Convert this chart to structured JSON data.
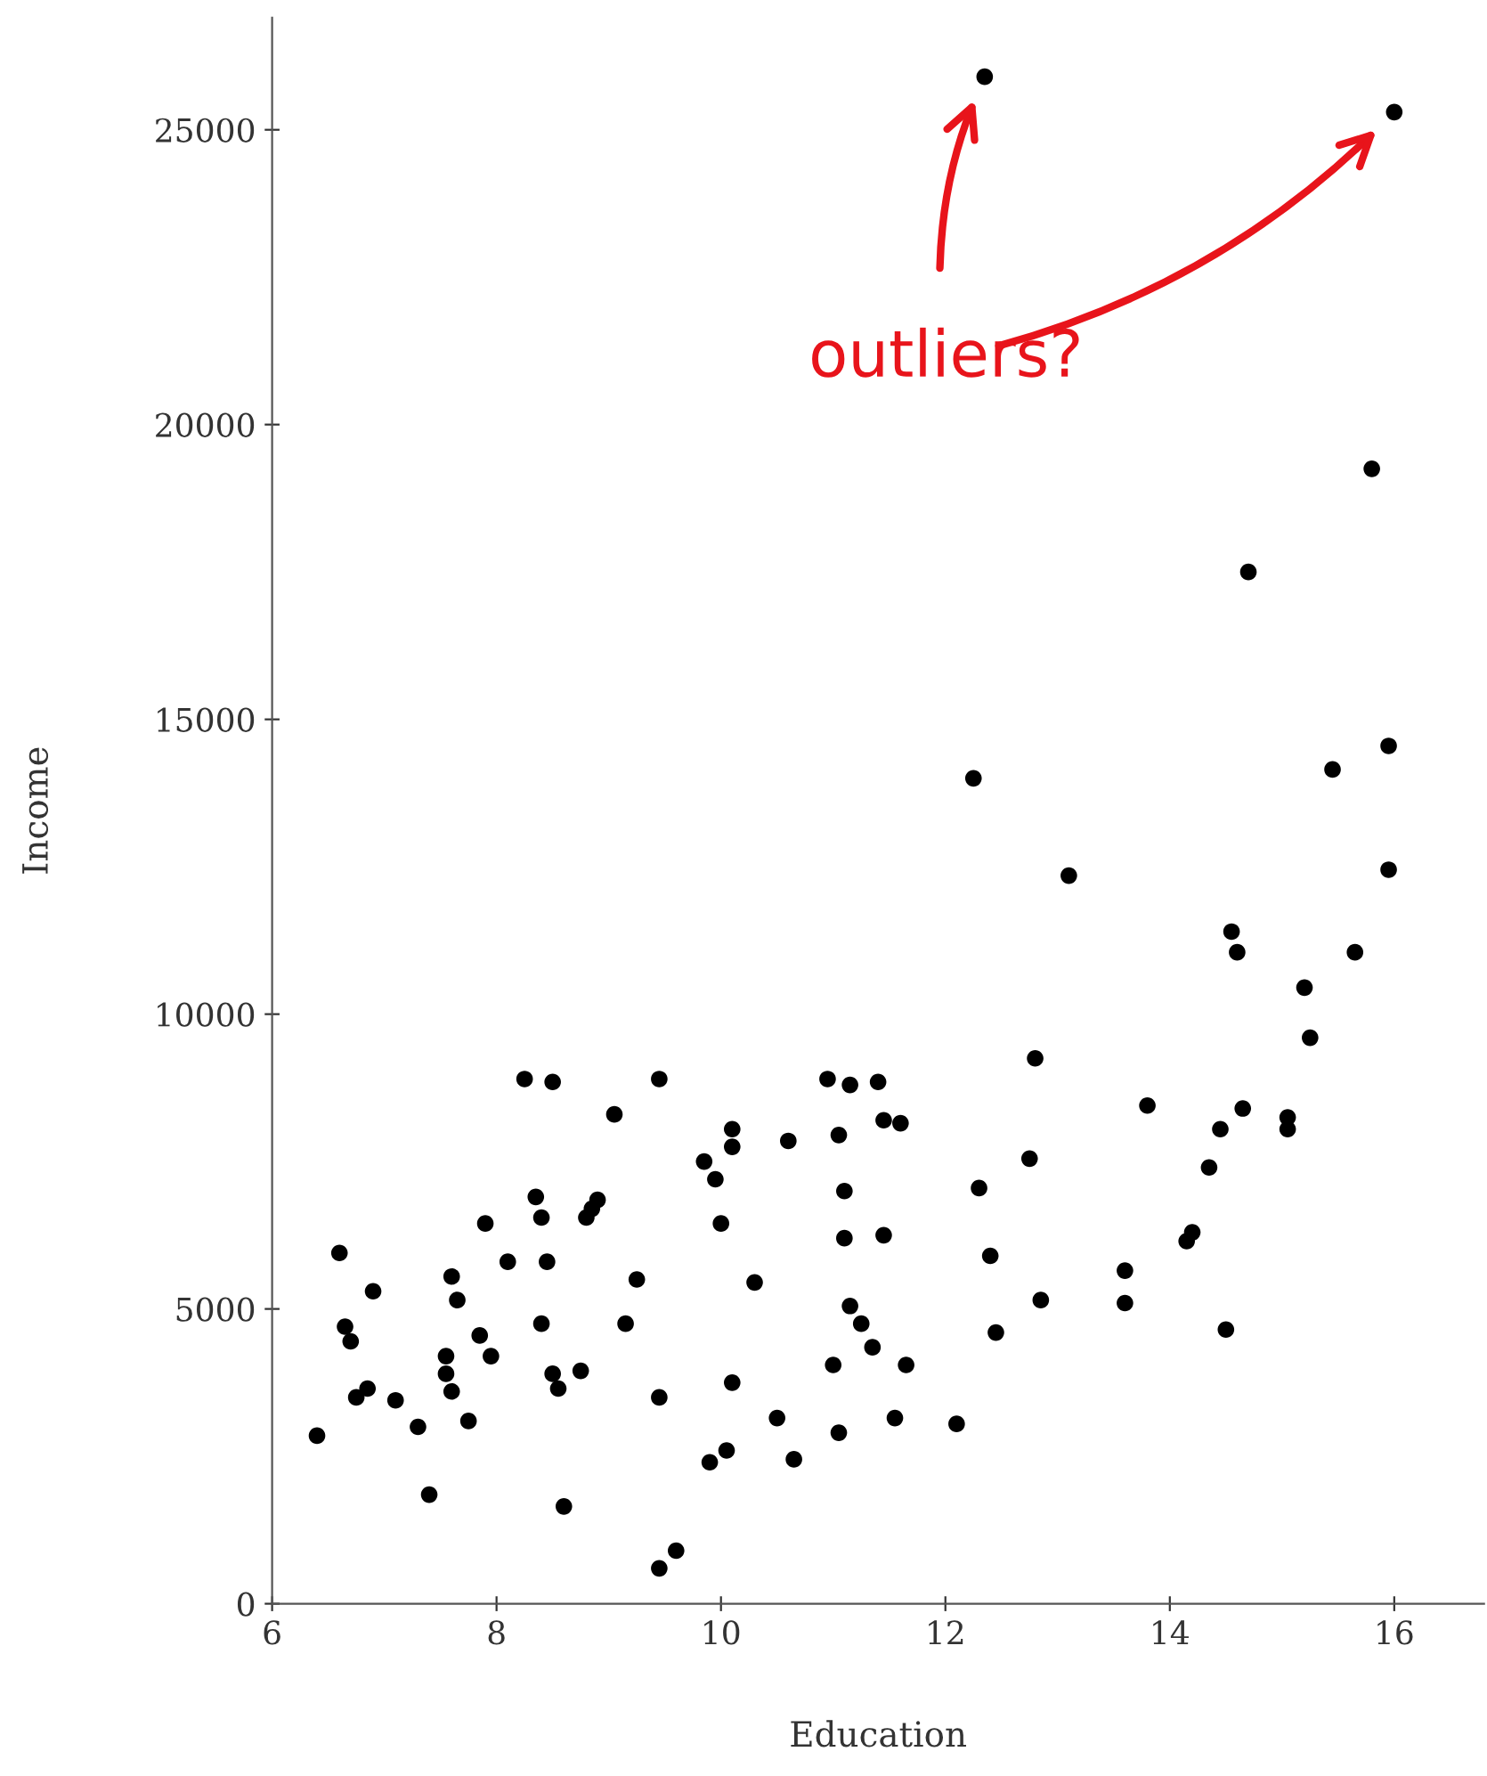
{
  "chart_data": {
    "type": "scatter",
    "xlabel": "Education",
    "ylabel": "Income",
    "xlim": [
      6,
      16.8
    ],
    "ylim": [
      0,
      26900
    ],
    "xticks": [
      6,
      8,
      10,
      12,
      14,
      16
    ],
    "yticks": [
      0,
      5000,
      10000,
      15000,
      20000,
      25000
    ],
    "grid": false,
    "marker": "circle",
    "annotations": [
      "outliers?"
    ],
    "series": [
      {
        "color": "#000000",
        "x": [
          6.4,
          6.6,
          6.65,
          6.7,
          6.75,
          6.85,
          6.9,
          7.1,
          7.3,
          7.4,
          7.55,
          7.55,
          7.6,
          7.6,
          7.65,
          7.75,
          7.85,
          7.9,
          7.95,
          8.1,
          8.25,
          8.35,
          8.4,
          8.4,
          8.45,
          8.5,
          8.5,
          8.55,
          8.6,
          8.75,
          8.8,
          8.85,
          8.9,
          9.05,
          9.15,
          9.25,
          9.45,
          9.45,
          9.45,
          9.6,
          9.85,
          9.9,
          9.95,
          10,
          10.05,
          10.1,
          10.1,
          10.1,
          10.3,
          10.5,
          10.6,
          10.65,
          10.95,
          11.0,
          11.05,
          11.05,
          11.1,
          11.1,
          11.15,
          11.15,
          11.25,
          11.35,
          11.4,
          11.45,
          11.45,
          11.55,
          11.6,
          11.65,
          12.1,
          12.25,
          12.3,
          12.35,
          12.4,
          12.45,
          12.75,
          12.8,
          12.85,
          13.1,
          13.6,
          13.6,
          13.8,
          14.15,
          14.2,
          14.35,
          14.45,
          14.55,
          14.5,
          14.6,
          14.65,
          14.7,
          15.05,
          15.05,
          15.2,
          15.25,
          15.45,
          15.65,
          15.8,
          15.95,
          15.95,
          16.0
        ],
        "values": [
          2850,
          5950,
          4700,
          4450,
          3500,
          3650,
          5300,
          3450,
          3000,
          1850,
          3900,
          4200,
          5550,
          3600,
          5150,
          3100,
          4550,
          6450,
          4200,
          5800,
          8900,
          6900,
          4750,
          6550,
          5800,
          8850,
          3900,
          3650,
          1650,
          3950,
          6550,
          6700,
          6850,
          8300,
          4750,
          5500,
          8900,
          3500,
          600,
          900,
          7500,
          2400,
          7200,
          6450,
          2600,
          7750,
          8050,
          3750,
          5450,
          3150,
          7850,
          2450,
          8900,
          4050,
          7950,
          2900,
          7000,
          6200,
          8800,
          5050,
          4750,
          4350,
          8850,
          6250,
          8200,
          3150,
          8150,
          4050,
          3050,
          14000,
          7050,
          25900,
          5900,
          4600,
          7550,
          9250,
          5150,
          12350,
          5650,
          5100,
          8450,
          6150,
          6300,
          7400,
          8050,
          11400,
          4650,
          11050,
          8400,
          17500,
          8250,
          8050,
          10450,
          9600,
          14150,
          11050,
          19250,
          14550,
          12450,
          25300
        ]
      }
    ]
  }
}
